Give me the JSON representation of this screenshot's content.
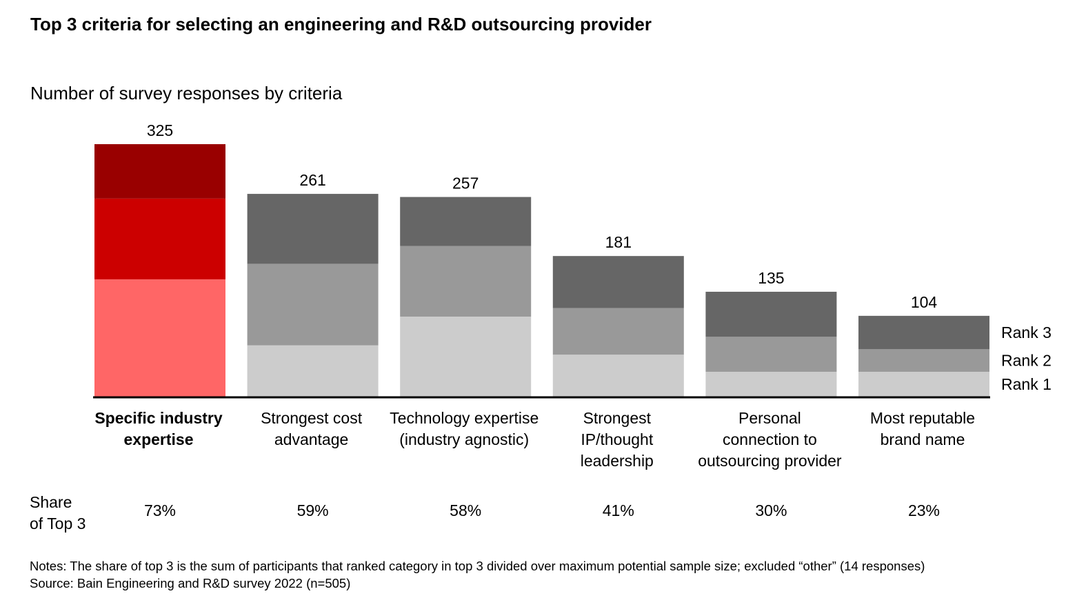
{
  "title": "Top 3 criteria for selecting an engineering and R&D outsourcing provider",
  "subtitle": "Number of survey responses by criteria",
  "share_label_line1": "Share",
  "share_label_line2": "of Top 3",
  "notes": "Notes: The share of top 3 is the sum of participants that ranked category in top 3 divided over maximum potential sample size; excluded “other” (14 responses)",
  "source": "Source: Bain Engineering and R&D survey 2022 (n=505)",
  "chart_data": {
    "type": "bar",
    "stacked": true,
    "title": "Number of survey responses by criteria",
    "categories": [
      [
        "Specific industry",
        "expertise"
      ],
      [
        "Strongest cost",
        "advantage"
      ],
      [
        "Technology expertise",
        "(industry agnostic)"
      ],
      [
        "Strongest",
        "IP/thought",
        "leadership"
      ],
      [
        "Personal",
        "connection to",
        "outsourcing provider"
      ],
      [
        "Most reputable",
        "brand name"
      ]
    ],
    "highlighted_category": 0,
    "series": [
      {
        "name": "Rank 1",
        "values": [
          151,
          66,
          103,
          54,
          32,
          32
        ]
      },
      {
        "name": "Rank 2",
        "values": [
          104,
          105,
          91,
          60,
          45,
          29
        ]
      },
      {
        "name": "Rank 3",
        "values": [
          70,
          90,
          63,
          67,
          58,
          43
        ]
      }
    ],
    "totals": [
      325,
      261,
      257,
      181,
      135,
      104
    ],
    "share_of_top3": [
      "73%",
      "59%",
      "58%",
      "41%",
      "30%",
      "23%"
    ],
    "colors": {
      "gray": [
        "#cccccc",
        "#999999",
        "#666666"
      ],
      "highlight": [
        "#ff6666",
        "#cc0000",
        "#990000"
      ]
    },
    "legend_placement": "right",
    "grid": false
  }
}
